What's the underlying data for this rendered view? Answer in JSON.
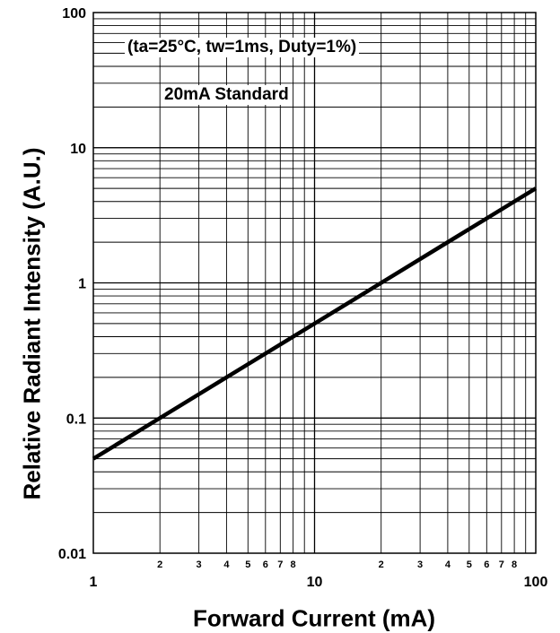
{
  "chart_data": {
    "type": "line",
    "xscale": "log",
    "yscale": "log",
    "xlim": [
      1,
      100
    ],
    "ylim": [
      0.01,
      100
    ],
    "grid": true,
    "xlabel": "Forward Current (mA)",
    "ylabel": "Relative Radiant Intensity (A.U.)",
    "x_major_ticks": [
      "1",
      "10",
      "100"
    ],
    "x_minor_ticks": [
      "2",
      "3",
      "4",
      "5",
      "6",
      "7",
      "8",
      "2",
      "3",
      "4",
      "5",
      "6",
      "7",
      "8"
    ],
    "y_ticks": [
      "0.01",
      "0.1",
      "1",
      "10",
      "100"
    ],
    "annotations": [
      "(ta=25°C, tw=1ms, Duty=1%)",
      "20mA Standard"
    ],
    "series": [
      {
        "x": [
          1,
          2,
          5,
          10,
          20,
          50,
          100
        ],
        "y": [
          0.05,
          0.1,
          0.25,
          0.5,
          1,
          2.5,
          5
        ]
      }
    ],
    "colors": {
      "line": "#000000",
      "grid": "#000000"
    }
  }
}
